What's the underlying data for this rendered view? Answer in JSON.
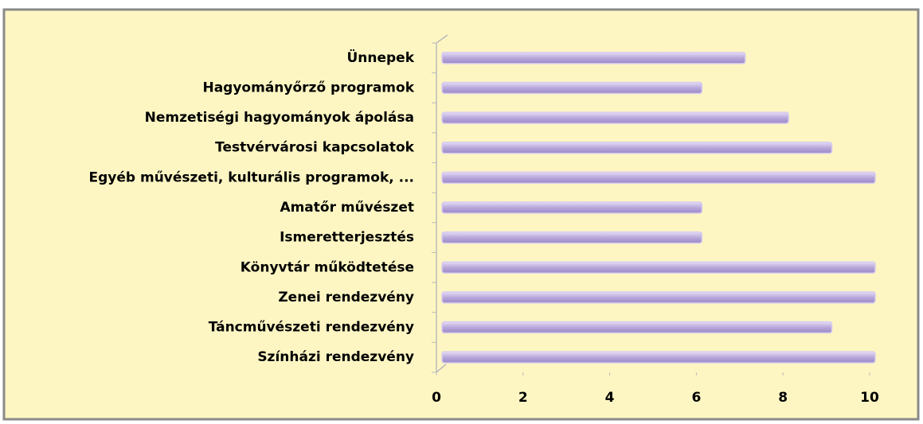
{
  "chart_data": {
    "type": "bar",
    "orientation": "horizontal",
    "categories": [
      "Ünnepek",
      "Hagyományőrző programok",
      "Nemzetiségi hagyományok ápolása",
      "Testvérvárosi kapcsolatok",
      "Egyéb művészeti, kulturális programok, ...",
      "Amatőr művészet",
      "Ismeretterjesztés",
      "Könyvtár működtetése",
      "Zenei rendezvény",
      "Táncművészeti rendezvény",
      "Színházi rendezvény"
    ],
    "values": [
      7,
      6,
      8,
      9,
      10,
      6,
      6,
      10,
      10,
      9,
      10
    ],
    "color": "#b9a8db",
    "xlim": [
      0,
      10
    ],
    "xticks": [
      0,
      2,
      4,
      6,
      8,
      10
    ],
    "grid": false
  }
}
